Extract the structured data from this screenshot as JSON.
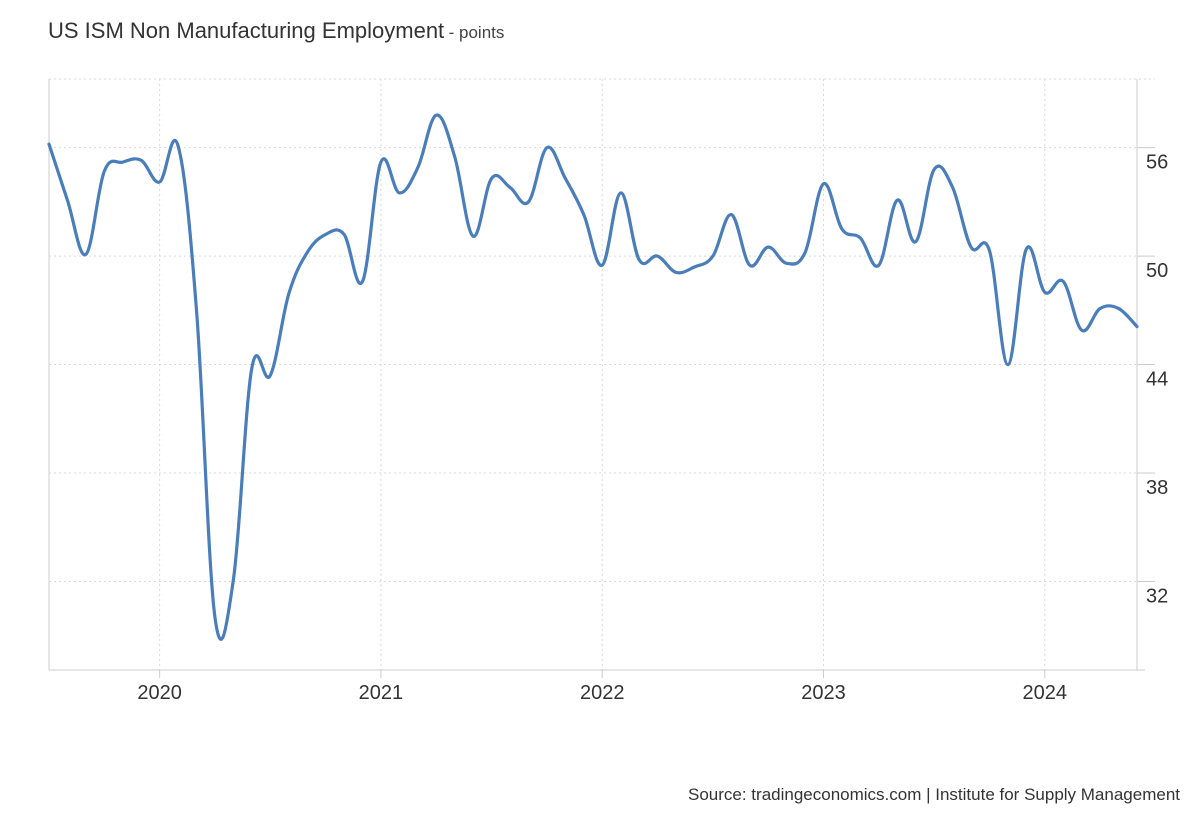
{
  "header": {
    "title": "US ISM Non Manufacturing Employment",
    "subtitle": "- points"
  },
  "source": "Source: tradingeconomics.com | Institute for Supply Management",
  "colors": {
    "line": "#4a7ebb",
    "grid": "#d9d9d9",
    "axis": "#cccccc",
    "text": "#333333"
  },
  "chart_data": {
    "type": "line",
    "title": "US ISM Non Manufacturing Employment",
    "subtitle": "- points",
    "xlabel": "",
    "ylabel": "",
    "ylim": [
      27.1,
      59.8
    ],
    "xlim": [
      "2019-07",
      "2024-06"
    ],
    "y_axis_side": "right",
    "grid": true,
    "y_ticks": [
      32,
      38,
      44,
      50,
      56
    ],
    "x_ticks": [
      {
        "label": "2020",
        "date": "2020-01"
      },
      {
        "label": "2021",
        "date": "2021-01"
      },
      {
        "label": "2022",
        "date": "2022-01"
      },
      {
        "label": "2023",
        "date": "2023-01"
      },
      {
        "label": "2024",
        "date": "2024-01"
      }
    ],
    "series": [
      {
        "x": [
          "2019-07",
          "2019-08",
          "2019-09",
          "2019-10",
          "2019-11",
          "2019-12",
          "2020-01",
          "2020-02",
          "2020-03",
          "2020-04",
          "2020-05",
          "2020-06",
          "2020-07",
          "2020-08",
          "2020-09",
          "2020-10",
          "2020-11",
          "2020-12",
          "2021-01",
          "2021-02",
          "2021-03",
          "2021-04",
          "2021-05",
          "2021-06",
          "2021-07",
          "2021-08",
          "2021-09",
          "2021-10",
          "2021-11",
          "2021-12",
          "2022-01",
          "2022-02",
          "2022-03",
          "2022-04",
          "2022-05",
          "2022-06",
          "2022-07",
          "2022-08",
          "2022-09",
          "2022-10",
          "2022-11",
          "2022-12",
          "2023-01",
          "2023-02",
          "2023-03",
          "2023-04",
          "2023-05",
          "2023-06",
          "2023-07",
          "2023-08",
          "2023-09",
          "2023-10",
          "2023-11",
          "2023-12",
          "2024-01",
          "2024-02",
          "2024-03",
          "2024-04",
          "2024-05",
          "2024-06"
        ],
        "values": [
          56.2,
          53.1,
          50.1,
          54.7,
          55.2,
          55.3,
          54.1,
          56.1,
          47.0,
          30.0,
          32.1,
          43.8,
          43.4,
          47.9,
          50.2,
          51.2,
          51.2,
          48.6,
          55.2,
          53.5,
          54.9,
          57.8,
          55.5,
          51.1,
          54.3,
          53.8,
          53.0,
          56.0,
          54.3,
          52.3,
          49.5,
          53.5,
          49.8,
          50.0,
          49.1,
          49.4,
          50.0,
          52.3,
          49.5,
          50.5,
          49.6,
          50.2,
          54.0,
          51.5,
          51.0,
          49.5,
          53.1,
          50.8,
          54.8,
          53.8,
          50.5,
          50.3,
          44.0,
          50.4,
          48.0,
          48.6,
          45.9,
          47.1,
          47.1,
          46.1
        ]
      }
    ]
  }
}
